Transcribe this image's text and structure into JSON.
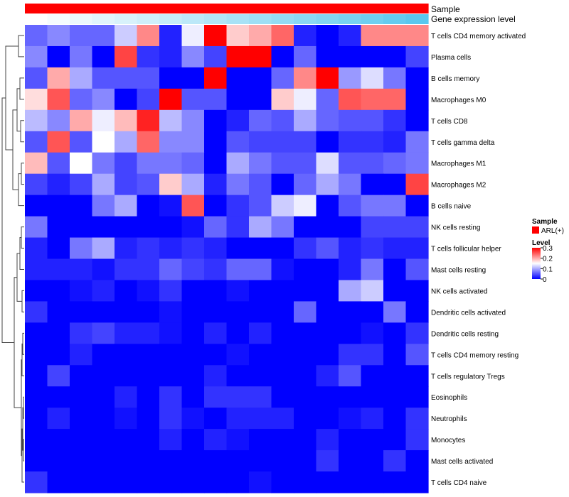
{
  "chart_data": {
    "type": "heatmap",
    "annotation_tracks": [
      {
        "name": "Sample",
        "values": [
          "ARL(+)",
          "ARL(+)",
          "ARL(+)",
          "ARL(+)",
          "ARL(+)",
          "ARL(+)",
          "ARL(+)",
          "ARL(+)",
          "ARL(+)",
          "ARL(+)",
          "ARL(+)",
          "ARL(+)",
          "ARL(+)",
          "ARL(+)",
          "ARL(+)",
          "ARL(+)",
          "ARL(+)",
          "ARL(+)"
        ]
      },
      {
        "name": "Gene expression level",
        "values": [
          0.0,
          0.06,
          0.12,
          0.18,
          0.24,
          0.29,
          0.35,
          0.41,
          0.47,
          0.53,
          0.59,
          0.65,
          0.71,
          0.76,
          0.82,
          0.88,
          0.94,
          1.0
        ]
      }
    ],
    "rows": [
      "T cells CD4 memory activated",
      "Plasma cells",
      "B cells memory",
      "Macrophages M0",
      "T cells CD8",
      "T cells gamma delta",
      "Macrophages M1",
      "Macrophages M2",
      "B cells naive",
      "NK cells resting",
      "T cells follicular helper",
      "Mast cells resting",
      "NK cells activated",
      "Dendritic cells activated",
      "Dendritic cells resting",
      "T cells CD4 memory resting",
      "T cells regulatory  Tregs",
      "Eosinophils",
      "Neutrophils",
      "Monocytes",
      "Mast cells activated",
      "T cells CD4 naive"
    ],
    "values": [
      [
        0.06,
        0.08,
        0.06,
        0.06,
        0.12,
        0.22,
        0.02,
        0.14,
        0.3,
        0.18,
        0.2,
        0.24,
        0.02,
        0.0,
        0.02,
        0.22,
        0.22,
        0.22
      ],
      [
        0.08,
        0.0,
        0.07,
        0.0,
        0.26,
        0.03,
        0.02,
        0.08,
        0.04,
        0.3,
        0.3,
        0.0,
        0.06,
        0.0,
        0.0,
        0.0,
        0.0,
        0.04
      ],
      [
        0.05,
        0.2,
        0.1,
        0.05,
        0.05,
        0.05,
        0.0,
        0.0,
        0.3,
        0.0,
        0.0,
        0.06,
        0.22,
        0.3,
        0.09,
        0.13,
        0.07,
        0.0
      ],
      [
        0.17,
        0.25,
        0.06,
        0.08,
        0.0,
        0.04,
        0.3,
        0.05,
        0.05,
        0.0,
        0.0,
        0.18,
        0.14,
        0.06,
        0.25,
        0.24,
        0.24,
        0.0
      ],
      [
        0.11,
        0.08,
        0.2,
        0.14,
        0.19,
        0.28,
        0.11,
        0.08,
        0.0,
        0.02,
        0.06,
        0.05,
        0.1,
        0.06,
        0.05,
        0.05,
        0.03,
        0.0
      ],
      [
        0.05,
        0.25,
        0.05,
        0.15,
        0.1,
        0.24,
        0.08,
        0.08,
        0.0,
        0.05,
        0.04,
        0.04,
        0.04,
        0.0,
        0.03,
        0.03,
        0.02,
        0.07
      ],
      [
        0.19,
        0.05,
        0.15,
        0.07,
        0.04,
        0.07,
        0.07,
        0.06,
        0.0,
        0.1,
        0.07,
        0.05,
        0.05,
        0.13,
        0.05,
        0.05,
        0.06,
        0.07
      ],
      [
        0.04,
        0.02,
        0.04,
        0.1,
        0.04,
        0.05,
        0.18,
        0.1,
        0.02,
        0.07,
        0.05,
        0.0,
        0.06,
        0.1,
        0.07,
        0.0,
        0.0,
        0.26
      ],
      [
        0.0,
        0.0,
        0.0,
        0.07,
        0.1,
        0.0,
        0.01,
        0.25,
        0.0,
        0.03,
        0.05,
        0.12,
        0.14,
        0.0,
        0.05,
        0.07,
        0.07,
        0.0
      ],
      [
        0.07,
        0.0,
        0.0,
        0.0,
        0.0,
        0.0,
        0.0,
        0.01,
        0.06,
        0.03,
        0.1,
        0.07,
        0.0,
        0.0,
        0.0,
        0.04,
        0.04,
        0.04
      ],
      [
        0.02,
        0.0,
        0.07,
        0.1,
        0.02,
        0.03,
        0.02,
        0.03,
        0.02,
        0.0,
        0.0,
        0.0,
        0.03,
        0.05,
        0.02,
        0.03,
        0.02,
        0.02
      ],
      [
        0.02,
        0.02,
        0.02,
        0.01,
        0.03,
        0.03,
        0.06,
        0.04,
        0.03,
        0.06,
        0.06,
        0.01,
        0.0,
        0.0,
        0.02,
        0.07,
        0.0,
        0.05
      ],
      [
        0.0,
        0.0,
        0.01,
        0.02,
        0.0,
        0.01,
        0.03,
        0.0,
        0.0,
        0.01,
        0.0,
        0.0,
        0.0,
        0.0,
        0.1,
        0.12,
        0.0,
        0.0
      ],
      [
        0.03,
        0.0,
        0.0,
        0.0,
        0.0,
        0.0,
        0.01,
        0.0,
        0.0,
        0.0,
        0.0,
        0.0,
        0.06,
        0.0,
        0.0,
        0.0,
        0.07,
        0.0
      ],
      [
        0.0,
        0.0,
        0.03,
        0.04,
        0.02,
        0.02,
        0.01,
        0.0,
        0.02,
        0.0,
        0.02,
        0.0,
        0.0,
        0.0,
        0.0,
        0.01,
        0.0,
        0.03
      ],
      [
        0.0,
        0.0,
        0.02,
        0.0,
        0.0,
        0.0,
        0.0,
        0.0,
        0.0,
        0.01,
        0.0,
        0.0,
        0.0,
        0.0,
        0.03,
        0.03,
        0.0,
        0.05
      ],
      [
        0.0,
        0.04,
        0.0,
        0.0,
        0.0,
        0.0,
        0.0,
        0.0,
        0.02,
        0.0,
        0.0,
        0.0,
        0.0,
        0.02,
        0.05,
        0.0,
        0.0,
        0.0
      ],
      [
        0.0,
        0.0,
        0.0,
        0.0,
        0.02,
        0.0,
        0.03,
        0.0,
        0.03,
        0.03,
        0.03,
        0.0,
        0.0,
        0.0,
        0.0,
        0.0,
        0.0,
        0.0
      ],
      [
        0.0,
        0.02,
        0.0,
        0.0,
        0.01,
        0.0,
        0.03,
        0.01,
        0.0,
        0.02,
        0.02,
        0.02,
        0.0,
        0.0,
        0.01,
        0.02,
        0.0,
        0.03
      ],
      [
        0.0,
        0.0,
        0.0,
        0.0,
        0.0,
        0.0,
        0.02,
        0.0,
        0.02,
        0.01,
        0.0,
        0.0,
        0.0,
        0.02,
        0.0,
        0.0,
        0.0,
        0.03
      ],
      [
        0.0,
        0.0,
        0.0,
        0.0,
        0.0,
        0.0,
        0.0,
        0.0,
        0.0,
        0.0,
        0.0,
        0.0,
        0.0,
        0.03,
        0.0,
        0.0,
        0.03,
        0.0
      ],
      [
        0.03,
        0.0,
        0.0,
        0.0,
        0.0,
        0.0,
        0.0,
        0.0,
        0.0,
        0.0,
        0.01,
        0.0,
        0.0,
        0.0,
        0.0,
        0.0,
        0.0,
        0.0
      ]
    ],
    "color_scale": {
      "low": "#0000ff",
      "mid": "#ffffff",
      "high": "#ff0000",
      "min": 0,
      "mid_value": 0.15,
      "max": 0.3
    },
    "legend": {
      "sample_title": "Sample",
      "sample_entry": "ARL(+)",
      "sample_color": "#ff0000",
      "level_title": "Level",
      "ticks": [
        "0.3",
        "0.2",
        "0.1",
        "0"
      ],
      "tick_values": [
        0.3,
        0.2,
        0.1,
        0
      ]
    },
    "annotation_colors": {
      "gene_low": "#ffffff",
      "gene_high": "#5bc8ee",
      "sample": "#ff0000"
    },
    "dendrogram": "row"
  }
}
